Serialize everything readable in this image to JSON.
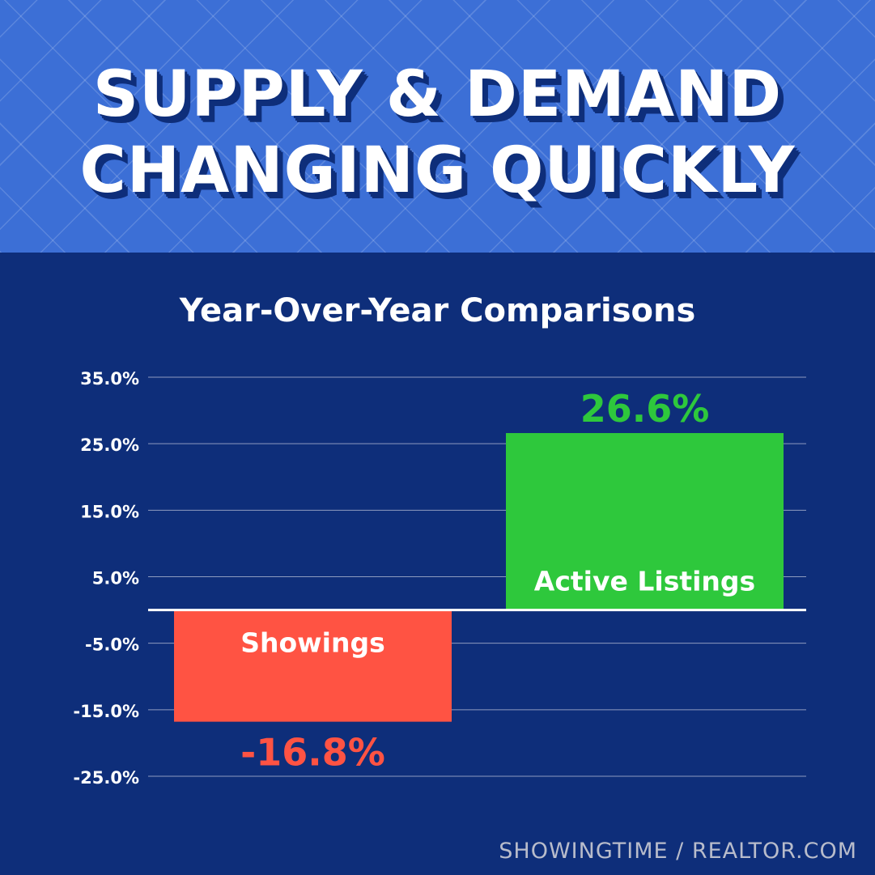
{
  "header": {
    "title_line_1": "SUPPLY & DEMAND",
    "title_line_2": "CHANGING QUICKLY"
  },
  "footer": {
    "source": "SHOWINGTIME / REALTOR.COM"
  },
  "colors": {
    "header_bg": "#3c6fd6",
    "panel_bg": "#0e2e7a",
    "positive": "#2ec83c",
    "negative": "#ff5343",
    "text": "#ffffff"
  },
  "chart_data": {
    "type": "bar",
    "title": "Year-Over-Year Comparisons",
    "xlabel": "",
    "ylabel": "",
    "categories": [
      "Showings",
      "Active Listings"
    ],
    "values": [
      -16.8,
      26.6
    ],
    "value_labels": [
      "-16.8%",
      "26.6%"
    ],
    "bar_colors": [
      "#ff5343",
      "#2ec83c"
    ],
    "ylim": [
      -25,
      35
    ],
    "yticks": [
      35,
      25,
      15,
      5,
      -5,
      -15,
      -25
    ],
    "ytick_labels": [
      "35.0%",
      "25.0%",
      "15.0%",
      "5.0%",
      "-5.0%",
      "-15.0%",
      "-25.0%"
    ],
    "grid": true,
    "legend": "none"
  }
}
